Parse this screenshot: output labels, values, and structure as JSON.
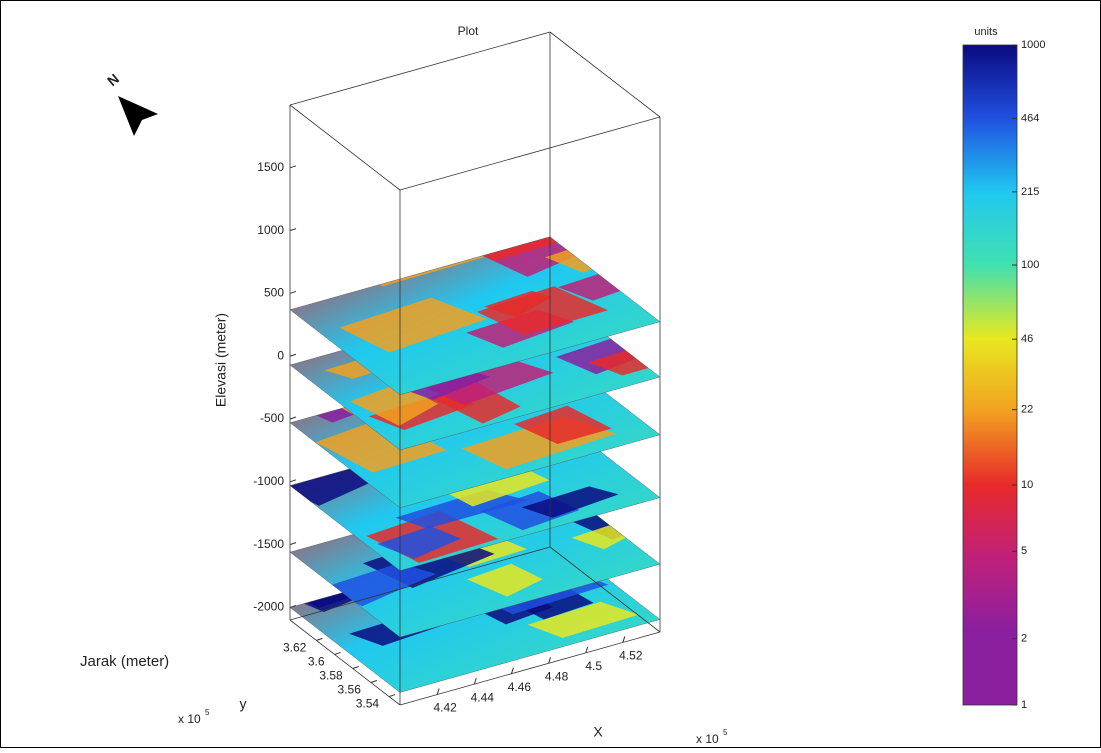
{
  "chart_data": {
    "type": "slice3d",
    "title": "Plot",
    "xlabel": "X",
    "ylabel": "y",
    "zlabel": "Elevasi (meter)",
    "distance_label": "Jarak (meter)",
    "x_multiplier": {
      "base": "x 10",
      "exp": "5"
    },
    "y_multiplier": {
      "base": "x 10",
      "exp": "5"
    },
    "north_label": "N",
    "xlim": [
      4.4,
      4.54
    ],
    "xticks": [
      4.42,
      4.44,
      4.46,
      4.48,
      4.5,
      4.52
    ],
    "ylim": [
      3.528,
      3.649
    ],
    "yticks": [
      3.54,
      3.56,
      3.58,
      3.6,
      3.62
    ],
    "zlim": [
      -2100,
      2000
    ],
    "zticks": [
      -2000,
      -1500,
      -1000,
      -500,
      0,
      500,
      1000,
      1500
    ],
    "slice_z": [
      370,
      -70,
      -530,
      -1030,
      -1560,
      -2000
    ],
    "colorbar": {
      "label": "units",
      "scale": "log",
      "lim": [
        1,
        1000
      ],
      "ticks": [
        1,
        2,
        5,
        10,
        22,
        46,
        100,
        215,
        464,
        1000
      ],
      "colormap": [
        "#8a1fa0",
        "#8a1fa0",
        "#c0207a",
        "#e82a2a",
        "#f2a020",
        "#e8e820",
        "#40e0b0",
        "#20c8f0",
        "#2050e0",
        "#0a0a80"
      ]
    }
  }
}
